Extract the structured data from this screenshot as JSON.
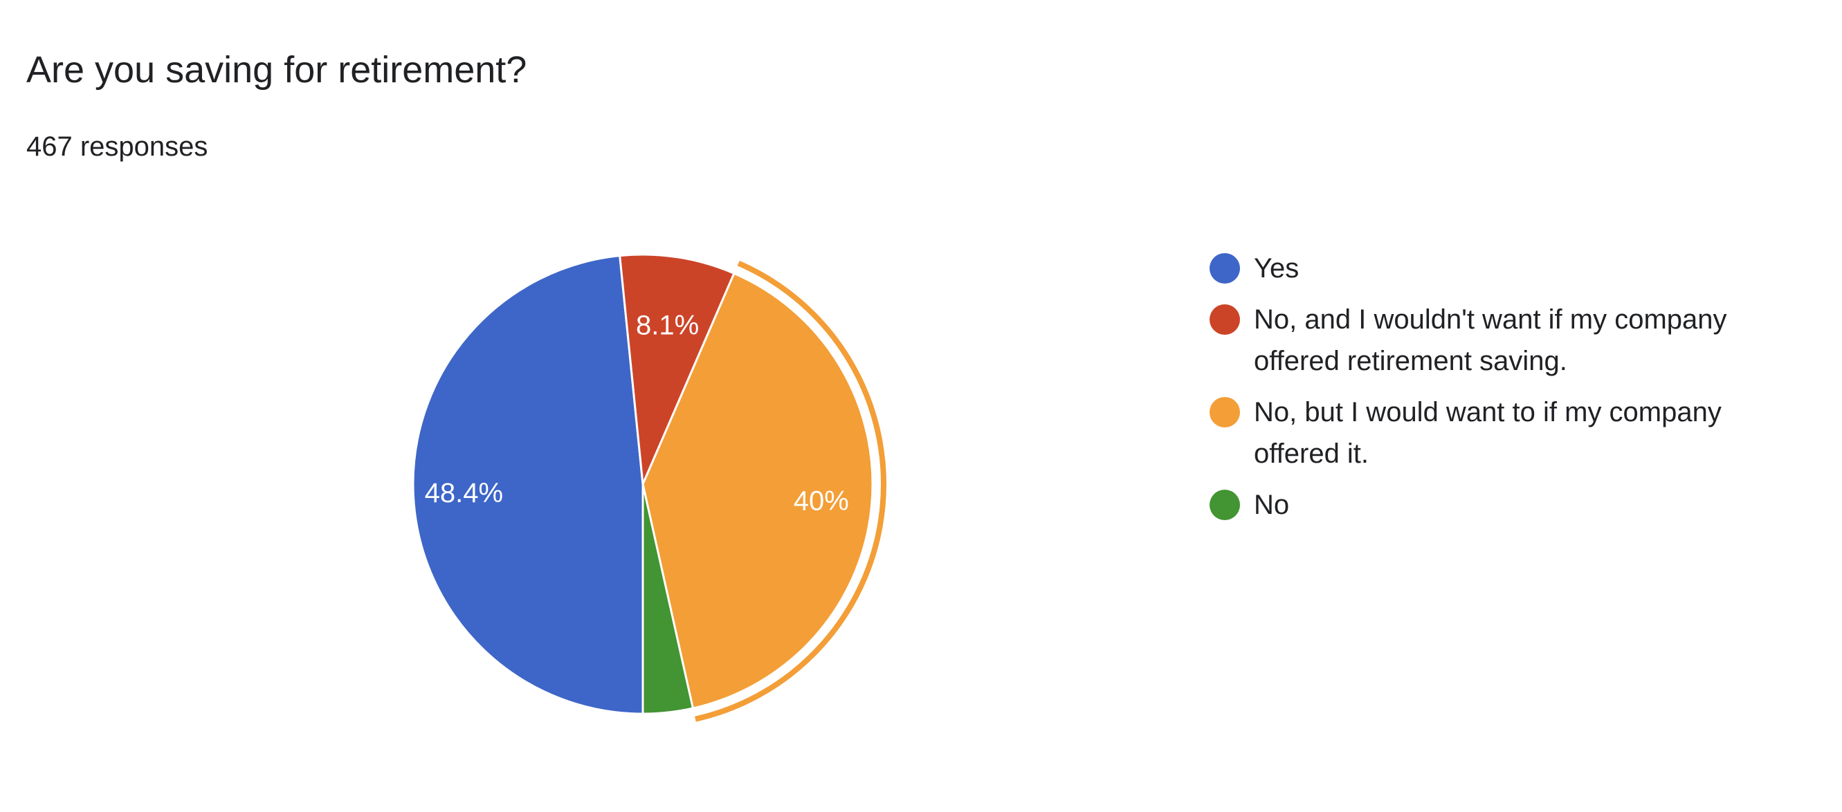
{
  "header": {
    "title": "Are you saving for retirement?",
    "responses": "467 responses"
  },
  "chart_data": {
    "type": "pie",
    "title": "Are you saving for retirement?",
    "categories": [
      "Yes",
      "No, and I wouldn't want if my company offered retirement saving.",
      "No, but I would want to if my company offered it.",
      "No"
    ],
    "values": [
      48.4,
      8.1,
      40.0,
      3.5
    ],
    "data_labels": [
      "48.4%",
      "8.1%",
      "40%",
      ""
    ],
    "colors": [
      "#3e66c8",
      "#cc4428",
      "#f39e37",
      "#439433"
    ],
    "highlighted_slice": 2,
    "start_angle_deg": 90,
    "direction": "clockwise",
    "legend_position": "right"
  },
  "legend": {
    "items": [
      {
        "label": "Yes",
        "color": "#3e66c8"
      },
      {
        "label": "No, and I wouldn't want if my company offered retirement saving.",
        "color": "#cc4428"
      },
      {
        "label": "No, but I would want to if my company offered it.",
        "color": "#f39e37"
      },
      {
        "label": "No",
        "color": "#439433"
      }
    ]
  }
}
